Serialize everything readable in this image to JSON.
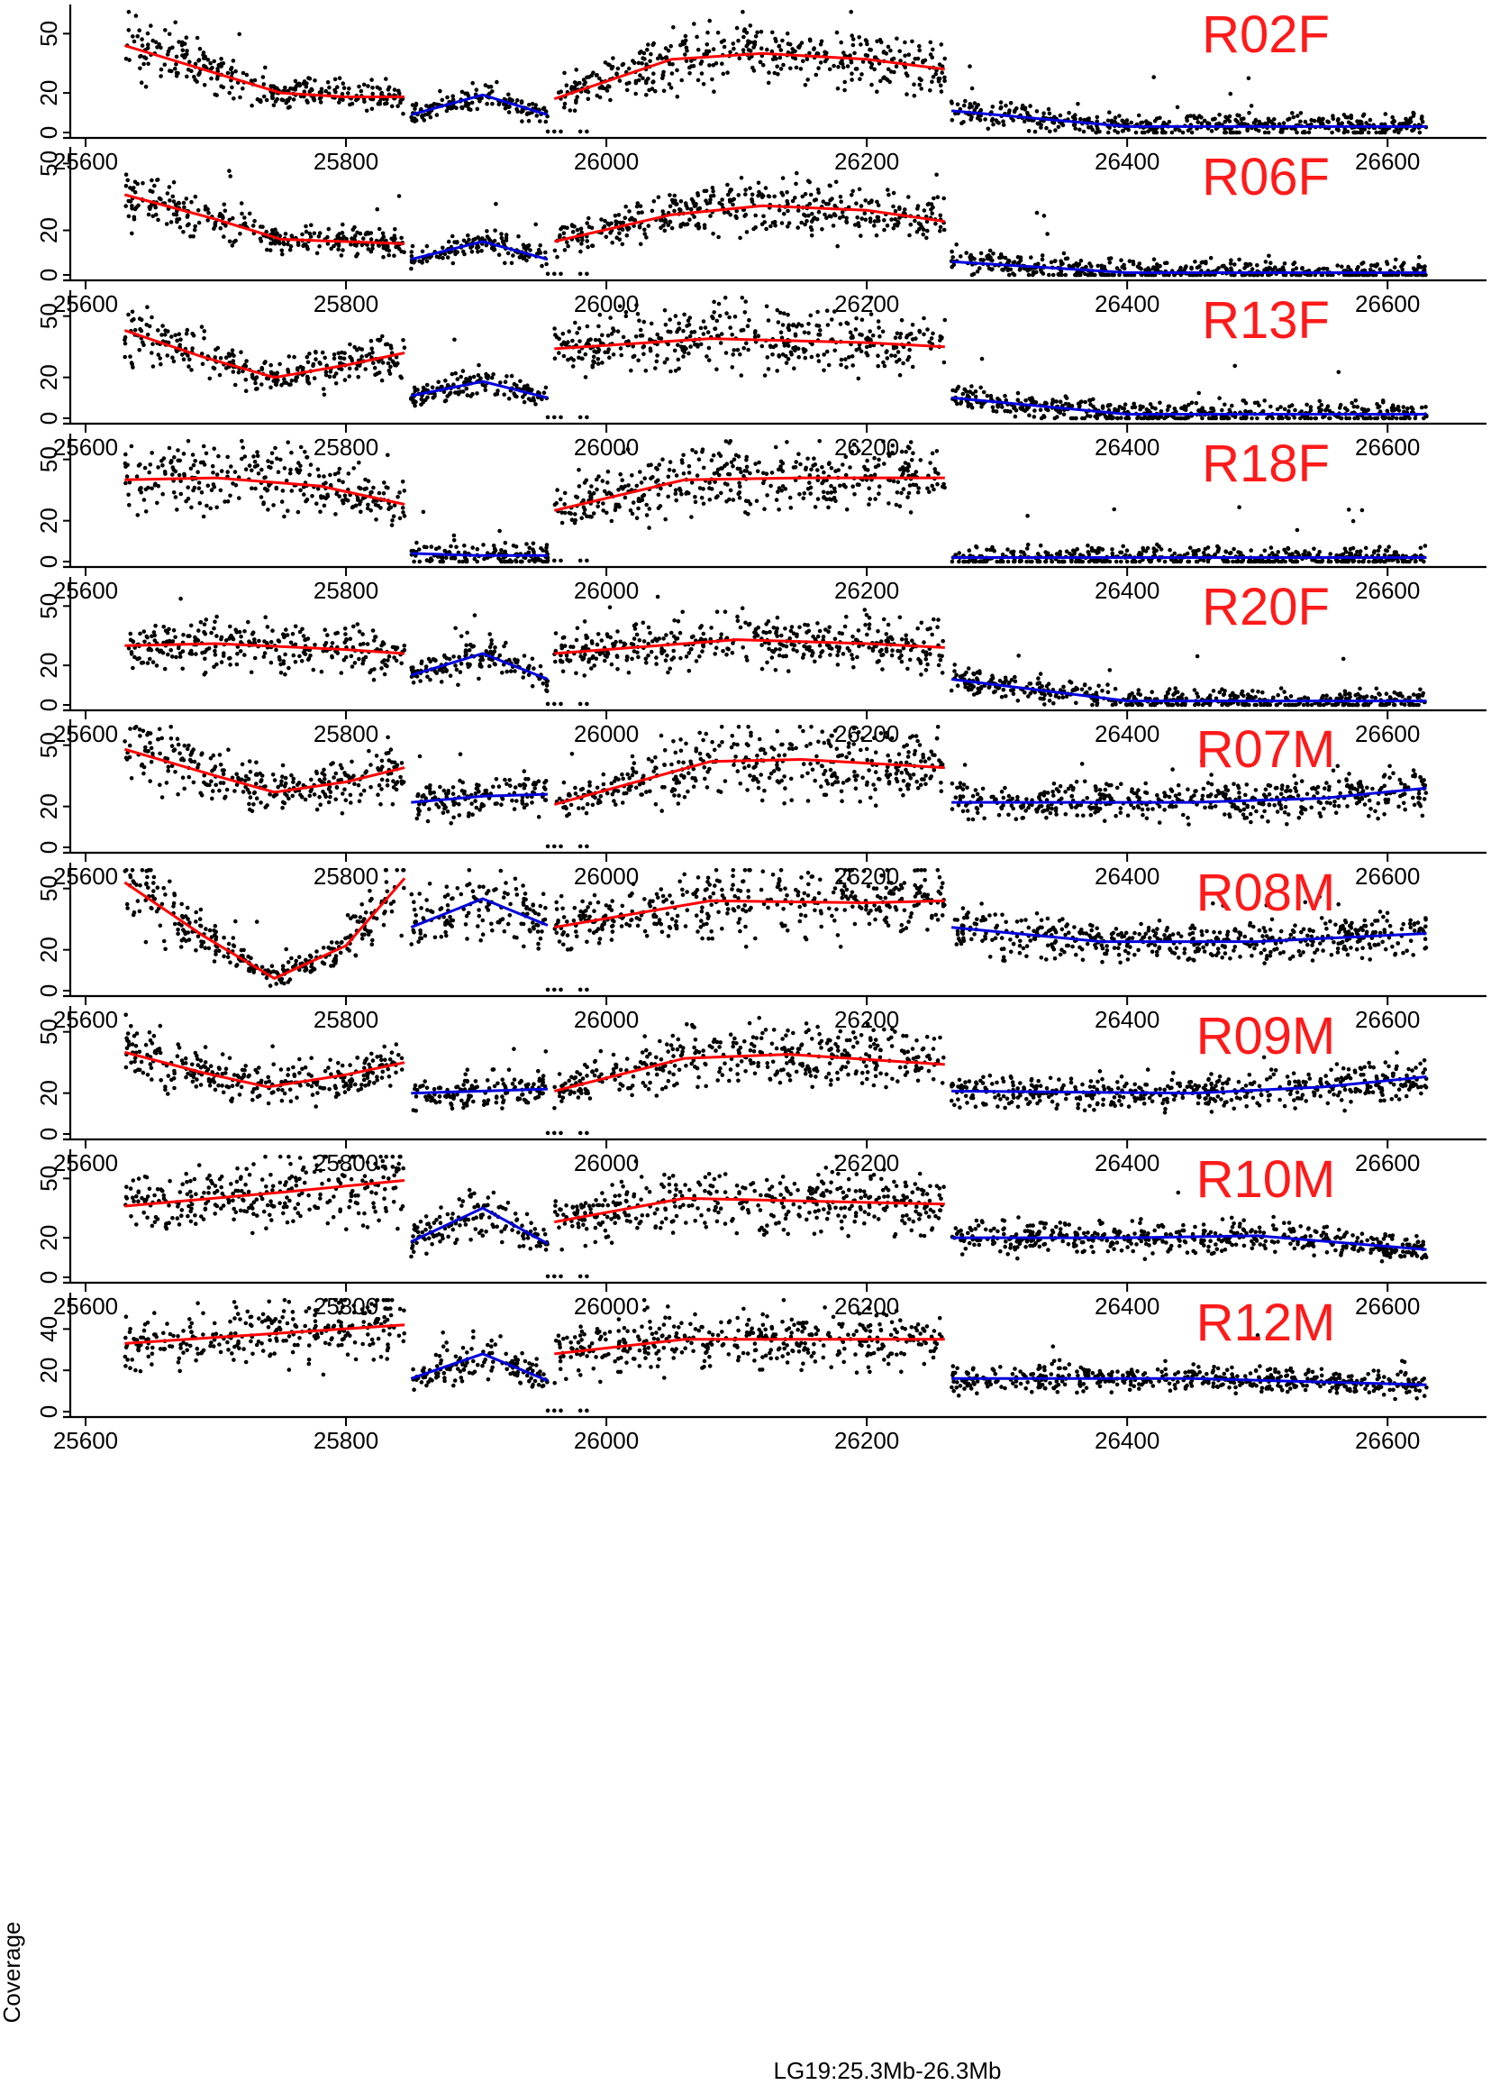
{
  "figure": {
    "xlabel": "LG19:25.3Mb-26.3Mb",
    "ylabel": "Coverage"
  },
  "chart_data": {
    "type": "scatter",
    "xlim": [
      25600,
      26640
    ],
    "x_ticks": [
      25600,
      25800,
      26000,
      26200,
      26400,
      26600
    ],
    "x_tick_labels": [
      "25600",
      "25800",
      "26000",
      "26200",
      "26400",
      "26600"
    ],
    "colors": {
      "points": "#000000",
      "fit_red": "#ff0000",
      "fit_blue": "#0000dd",
      "label": "#ff1a1a"
    },
    "segments": [
      {
        "range": [
          25630,
          25845
        ],
        "fit_color": "red"
      },
      {
        "range": [
          25850,
          25955
        ],
        "fit_color": "blue"
      },
      {
        "range": [
          25960,
          26260
        ],
        "fit_color": "red"
      },
      {
        "range": [
          26265,
          26630
        ],
        "fit_color": "blue"
      }
    ],
    "panels": [
      {
        "label": "R02F",
        "ylim": [
          0,
          62
        ],
        "y_ticks": [
          0,
          20,
          50
        ],
        "fits": [
          [
            [
              25630,
              44
            ],
            [
              25700,
              30
            ],
            [
              25750,
              20
            ],
            [
              25800,
              18
            ],
            [
              25845,
              18
            ]
          ],
          [
            [
              25850,
              9
            ],
            [
              25905,
              19
            ],
            [
              25955,
              9
            ]
          ],
          [
            [
              25960,
              17
            ],
            [
              26050,
              37
            ],
            [
              26120,
              40
            ],
            [
              26200,
              37
            ],
            [
              26260,
              32
            ]
          ],
          [
            [
              26265,
              11
            ],
            [
              26400,
              3
            ],
            [
              26630,
              3
            ]
          ]
        ]
      },
      {
        "label": "R06F",
        "ylim": [
          0,
          55
        ],
        "y_ticks": [
          0,
          20,
          50
        ],
        "fits": [
          [
            [
              25630,
              36
            ],
            [
              25700,
              25
            ],
            [
              25750,
              16
            ],
            [
              25845,
              14
            ]
          ],
          [
            [
              25850,
              7
            ],
            [
              25905,
              15
            ],
            [
              25955,
              7
            ]
          ],
          [
            [
              25960,
              15
            ],
            [
              26050,
              27
            ],
            [
              26120,
              31
            ],
            [
              26200,
              29
            ],
            [
              26260,
              24
            ]
          ],
          [
            [
              26265,
              6
            ],
            [
              26400,
              1
            ],
            [
              26630,
              1
            ]
          ]
        ]
      },
      {
        "label": "R13F",
        "ylim": [
          0,
          60
        ],
        "y_ticks": [
          0,
          20,
          50
        ],
        "fits": [
          [
            [
              25630,
              43
            ],
            [
              25690,
              30
            ],
            [
              25745,
              20
            ],
            [
              25800,
              26
            ],
            [
              25845,
              32
            ]
          ],
          [
            [
              25850,
              11
            ],
            [
              25905,
              18
            ],
            [
              25955,
              10
            ]
          ],
          [
            [
              25960,
              34
            ],
            [
              26080,
              39
            ],
            [
              26200,
              37
            ],
            [
              26260,
              35
            ]
          ],
          [
            [
              26265,
              10
            ],
            [
              26400,
              2
            ],
            [
              26630,
              2
            ]
          ]
        ]
      },
      {
        "label": "R18F",
        "ylim": [
          0,
          60
        ],
        "y_ticks": [
          0,
          20,
          50
        ],
        "fits": [
          [
            [
              25630,
              40
            ],
            [
              25700,
              41
            ],
            [
              25780,
              37
            ],
            [
              25845,
              28
            ]
          ],
          [
            [
              25850,
              4
            ],
            [
              25900,
              3
            ],
            [
              25955,
              3
            ]
          ],
          [
            [
              25960,
              25
            ],
            [
              26060,
              40
            ],
            [
              26150,
              41
            ],
            [
              26260,
              41
            ]
          ],
          [
            [
              26265,
              2
            ],
            [
              26400,
              2
            ],
            [
              26630,
              2
            ]
          ]
        ]
      },
      {
        "label": "R20F",
        "ylim": [
          0,
          62
        ],
        "y_ticks": [
          0,
          20,
          50
        ],
        "fits": [
          [
            [
              25630,
              30
            ],
            [
              25700,
              31
            ],
            [
              25800,
              28
            ],
            [
              25845,
              26
            ]
          ],
          [
            [
              25850,
              15
            ],
            [
              25905,
              26
            ],
            [
              25955,
              13
            ]
          ],
          [
            [
              25960,
              26
            ],
            [
              26100,
              33
            ],
            [
              26200,
              31
            ],
            [
              26260,
              29
            ]
          ],
          [
            [
              26265,
              13
            ],
            [
              26400,
              2
            ],
            [
              26630,
              2
            ]
          ]
        ]
      },
      {
        "label": "R07M",
        "ylim": [
          0,
          60
        ],
        "y_ticks": [
          0,
          20,
          50
        ],
        "fits": [
          [
            [
              25630,
              48
            ],
            [
              25700,
              35
            ],
            [
              25745,
              27
            ],
            [
              25800,
              32
            ],
            [
              25845,
              39
            ]
          ],
          [
            [
              25850,
              22
            ],
            [
              25905,
              25
            ],
            [
              25955,
              26
            ]
          ],
          [
            [
              25960,
              21
            ],
            [
              26080,
              42
            ],
            [
              26150,
              43
            ],
            [
              26260,
              39
            ]
          ],
          [
            [
              26265,
              22
            ],
            [
              26450,
              22
            ],
            [
              26550,
              24
            ],
            [
              26630,
              29
            ]
          ]
        ]
      },
      {
        "label": "R08M",
        "ylim": [
          0,
          60
        ],
        "y_ticks": [
          0,
          20,
          50
        ],
        "fits": [
          [
            [
              25630,
              53
            ],
            [
              25690,
              27
            ],
            [
              25745,
              6
            ],
            [
              25800,
              22
            ],
            [
              25845,
              55
            ]
          ],
          [
            [
              25850,
              31
            ],
            [
              25905,
              45
            ],
            [
              25955,
              32
            ]
          ],
          [
            [
              25960,
              31
            ],
            [
              26080,
              44
            ],
            [
              26200,
              43
            ],
            [
              26260,
              44
            ]
          ],
          [
            [
              26265,
              31
            ],
            [
              26380,
              24
            ],
            [
              26500,
              24
            ],
            [
              26630,
              28
            ]
          ]
        ]
      },
      {
        "label": "R09M",
        "ylim": [
          0,
          60
        ],
        "y_ticks": [
          0,
          20,
          50
        ],
        "fits": [
          [
            [
              25630,
              40
            ],
            [
              25690,
              30
            ],
            [
              25740,
              23
            ],
            [
              25800,
              29
            ],
            [
              25845,
              35
            ]
          ],
          [
            [
              25850,
              20
            ],
            [
              25905,
              21
            ],
            [
              25955,
              22
            ]
          ],
          [
            [
              25960,
              21
            ],
            [
              26060,
              37
            ],
            [
              26140,
              39
            ],
            [
              26260,
              34
            ]
          ],
          [
            [
              26265,
              21
            ],
            [
              26450,
              20
            ],
            [
              26550,
              23
            ],
            [
              26630,
              28
            ]
          ]
        ]
      },
      {
        "label": "R10M",
        "ylim": [
          0,
          62
        ],
        "y_ticks": [
          0,
          20,
          50
        ],
        "fits": [
          [
            [
              25630,
              36
            ],
            [
              25750,
              43
            ],
            [
              25845,
              49
            ]
          ],
          [
            [
              25850,
              18
            ],
            [
              25905,
              35
            ],
            [
              25955,
              17
            ]
          ],
          [
            [
              25960,
              28
            ],
            [
              26060,
              40
            ],
            [
              26260,
              37
            ]
          ],
          [
            [
              26265,
              20
            ],
            [
              26400,
              20
            ],
            [
              26500,
              21
            ],
            [
              26630,
              14
            ]
          ]
        ]
      },
      {
        "label": "R12M",
        "ylim": [
          0,
          55
        ],
        "y_ticks": [
          0,
          20,
          40
        ],
        "fits": [
          [
            [
              25630,
              33
            ],
            [
              25750,
              38
            ],
            [
              25845,
              42
            ]
          ],
          [
            [
              25850,
              16
            ],
            [
              25905,
              28
            ],
            [
              25955,
              15
            ]
          ],
          [
            [
              25960,
              28
            ],
            [
              26060,
              35
            ],
            [
              26260,
              35
            ]
          ],
          [
            [
              26265,
              16
            ],
            [
              26450,
              16
            ],
            [
              26630,
              13
            ]
          ]
        ]
      }
    ]
  }
}
